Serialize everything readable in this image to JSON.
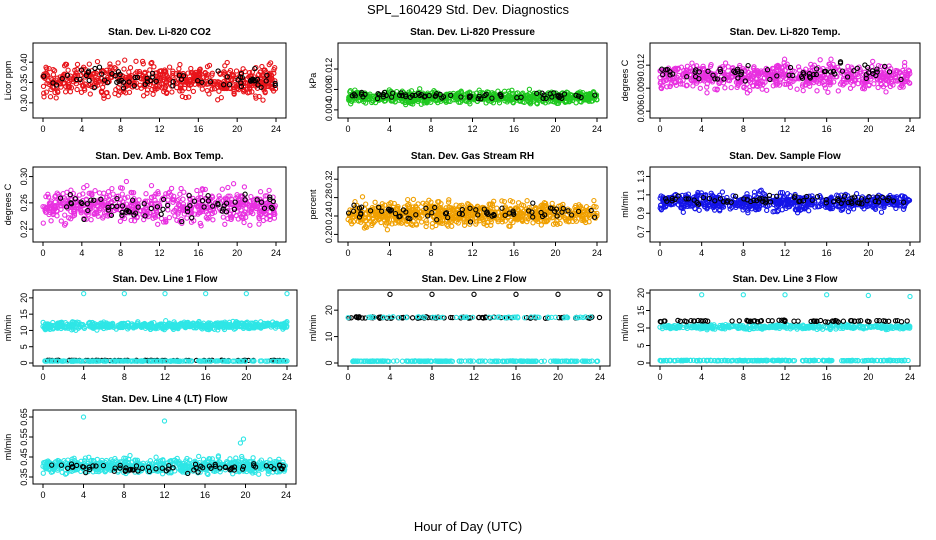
{
  "figure": {
    "title": "SPL_160429  Std. Dev. Diagnostics",
    "xlabel": "Hour of Day (UTC)"
  },
  "chart_data": [
    {
      "type": "scatter",
      "title": "Stan. Dev. Li-820 CO2",
      "ylabel": "Licor ppm",
      "xlim": [
        0,
        24
      ],
      "ylim": [
        0.27,
        0.44
      ],
      "xticks": [
        "0",
        "4",
        "8",
        "12",
        "16",
        "20",
        "24"
      ],
      "yticks": [
        {
          "v": 0.3,
          "t": "0.30"
        },
        {
          "v": 0.35,
          "t": "0.35"
        },
        {
          "v": 0.4,
          "t": "0.40"
        }
      ],
      "series": [
        {
          "color": "#e8141a",
          "mean": 0.355,
          "spread": 0.075,
          "min": 0.28,
          "max": 0.43,
          "n": 600
        },
        {
          "color": "#000000",
          "mean": 0.36,
          "spread": 0.05,
          "min": 0.3,
          "max": 0.43,
          "n": 70
        }
      ]
    },
    {
      "type": "scatter",
      "title": "Stan. Dev. Li-820 Pressure",
      "ylabel": "kPa",
      "xlim": [
        0,
        24
      ],
      "ylim": [
        0.003,
        0.0165
      ],
      "xticks": [
        "0",
        "4",
        "8",
        "12",
        "16",
        "20",
        "24"
      ],
      "yticks": [
        {
          "v": 0.004,
          "t": "0.004"
        },
        {
          "v": 0.008,
          "t": "0.008"
        },
        {
          "v": 0.012,
          "t": "0.012"
        }
      ],
      "series": [
        {
          "color": "#1ec81e",
          "mean": 0.0065,
          "spread": 0.0022,
          "min": 0.0035,
          "max": 0.015,
          "n": 700
        },
        {
          "color": "#000000",
          "mean": 0.0068,
          "spread": 0.0013,
          "min": 0.005,
          "max": 0.009,
          "n": 70
        }
      ]
    },
    {
      "type": "scatter",
      "title": "Stan. Dev. Li-820 Temp.",
      "ylabel": "degrees C",
      "xlim": [
        0,
        24
      ],
      "ylim": [
        0.0055,
        0.0145
      ],
      "xticks": [
        "0",
        "4",
        "8",
        "12",
        "16",
        "20",
        "24"
      ],
      "yticks": [
        {
          "v": 0.006,
          "t": "0.006"
        },
        {
          "v": 0.009,
          "t": "0.009"
        },
        {
          "v": 0.012,
          "t": "0.012"
        }
      ],
      "series": [
        {
          "color": "#e830e0",
          "mean": 0.0105,
          "spread": 0.0032,
          "min": 0.006,
          "max": 0.014,
          "n": 650
        },
        {
          "color": "#000000",
          "mean": 0.011,
          "spread": 0.002,
          "min": 0.0085,
          "max": 0.014,
          "n": 70
        }
      ]
    },
    {
      "type": "scatter",
      "title": "Stan. Dev. Amb. Box Temp.",
      "ylabel": "degrees C",
      "xlim": [
        0,
        24
      ],
      "ylim": [
        0.205,
        0.31
      ],
      "xticks": [
        "0",
        "4",
        "8",
        "12",
        "16",
        "20",
        "24"
      ],
      "yticks": [
        {
          "v": 0.22,
          "t": "0.22"
        },
        {
          "v": 0.26,
          "t": "0.26"
        },
        {
          "v": 0.3,
          "t": "0.30"
        }
      ],
      "series": [
        {
          "color": "#e830e0",
          "mean": 0.255,
          "spread": 0.05,
          "min": 0.21,
          "max": 0.305,
          "n": 600
        },
        {
          "color": "#000000",
          "mean": 0.255,
          "spread": 0.035,
          "min": 0.215,
          "max": 0.295,
          "n": 70
        }
      ]
    },
    {
      "type": "scatter",
      "title": "Stan. Dev. Gas Stream RH",
      "ylabel": "percent",
      "xlim": [
        0,
        24
      ],
      "ylim": [
        0.19,
        0.34
      ],
      "xticks": [
        "0",
        "4",
        "8",
        "12",
        "16",
        "20",
        "24"
      ],
      "yticks": [
        {
          "v": 0.2,
          "t": "0.20"
        },
        {
          "v": 0.24,
          "t": "0.24"
        },
        {
          "v": 0.28,
          "t": "0.28"
        },
        {
          "v": 0.32,
          "t": "0.32"
        }
      ],
      "series": [
        {
          "color": "#f0a000",
          "mean": 0.245,
          "spread": 0.05,
          "min": 0.195,
          "max": 0.33,
          "n": 750
        },
        {
          "color": "#000000",
          "mean": 0.245,
          "spread": 0.03,
          "min": 0.21,
          "max": 0.29,
          "n": 70
        }
      ]
    },
    {
      "type": "scatter",
      "title": "Stan. Dev. Sample Flow",
      "ylabel": "ml/min",
      "xlim": [
        0,
        24
      ],
      "ylim": [
        0.62,
        1.37
      ],
      "xticks": [
        "0",
        "4",
        "8",
        "12",
        "16",
        "20",
        "24"
      ],
      "yticks": [
        {
          "v": 0.7,
          "t": "0.7"
        },
        {
          "v": 0.9,
          "t": "0.9"
        },
        {
          "v": 1.1,
          "t": "1.1"
        },
        {
          "v": 1.3,
          "t": "1.3"
        }
      ],
      "series": [
        {
          "color": "#1414e8",
          "mean": 1.02,
          "spread": 0.18,
          "min": 0.65,
          "max": 1.35,
          "n": 650
        },
        {
          "color": "#000000",
          "mean": 1.05,
          "spread": 0.1,
          "min": 0.9,
          "max": 1.25,
          "n": 70
        }
      ]
    },
    {
      "type": "scatter",
      "title": "Stan. Dev. Line 1 Flow",
      "ylabel": "ml/min",
      "xlim": [
        0,
        24
      ],
      "ylim": [
        0,
        21.5
      ],
      "xticks": [
        "0",
        "4",
        "8",
        "12",
        "16",
        "20",
        "24"
      ],
      "yticks": [
        {
          "v": 0,
          "t": "0"
        },
        {
          "v": 5,
          "t": "5"
        },
        {
          "v": 10,
          "t": "10"
        },
        {
          "v": 15,
          "t": "15"
        },
        {
          "v": 20,
          "t": "20"
        }
      ],
      "series": [
        {
          "color": "#2ee6e6",
          "mean": 11.5,
          "spread": 2.2,
          "min": 9.5,
          "max": 13.5,
          "n": 600
        },
        {
          "color": "#000000",
          "mean": 0.8,
          "spread": 0.1,
          "min": 0.6,
          "max": 1.0,
          "n": 70
        },
        {
          "color": "#2ee6e6",
          "mean": 0.6,
          "spread": 0.1,
          "min": 0.4,
          "max": 0.8,
          "n": 200
        }
      ],
      "outliers": [
        {
          "x": 4,
          "y": 21.3
        },
        {
          "x": 8,
          "y": 21.3
        },
        {
          "x": 12,
          "y": 21.3
        },
        {
          "x": 16,
          "y": 21.3
        },
        {
          "x": 20,
          "y": 21.3
        },
        {
          "x": 24,
          "y": 21.3
        }
      ]
    },
    {
      "type": "scatter",
      "title": "Stan. Dev. Line 2 Flow",
      "ylabel": "ml/min",
      "xlim": [
        0,
        24
      ],
      "ylim": [
        0,
        26.5
      ],
      "xticks": [
        "0",
        "4",
        "8",
        "12",
        "16",
        "20",
        "24"
      ],
      "yticks": [
        {
          "v": 0,
          "t": "0"
        },
        {
          "v": 10,
          "t": "10"
        },
        {
          "v": 20,
          "t": "20"
        }
      ],
      "series": [
        {
          "color": "#000000",
          "mean": 17.2,
          "spread": 0.6,
          "min": 16.5,
          "max": 18,
          "n": 80
        },
        {
          "color": "#2ee6e6",
          "mean": 17.3,
          "spread": 0.4,
          "min": 16.8,
          "max": 17.8,
          "n": 60
        },
        {
          "color": "#2ee6e6",
          "mean": 0.7,
          "spread": 0.2,
          "min": 0.4,
          "max": 1.0,
          "n": 200
        }
      ],
      "outliers": [
        {
          "x": 4,
          "y": 26
        },
        {
          "x": 8,
          "y": 26
        },
        {
          "x": 12,
          "y": 26
        },
        {
          "x": 16,
          "y": 26
        },
        {
          "x": 20,
          "y": 26
        },
        {
          "x": 24,
          "y": 26
        }
      ]
    },
    {
      "type": "scatter",
      "title": "Stan. Dev. Line 3 Flow",
      "ylabel": "ml/min",
      "xlim": [
        0,
        24
      ],
      "ylim": [
        0,
        20
      ],
      "xticks": [
        "0",
        "4",
        "8",
        "12",
        "16",
        "20",
        "24"
      ],
      "yticks": [
        {
          "v": 0,
          "t": "0"
        },
        {
          "v": 5,
          "t": "5"
        },
        {
          "v": 10,
          "t": "10"
        },
        {
          "v": 15,
          "t": "15"
        },
        {
          "v": 20,
          "t": "20"
        }
      ],
      "series": [
        {
          "color": "#2ee6e6",
          "mean": 10.3,
          "spread": 1.2,
          "min": 9.5,
          "max": 11.2,
          "n": 400
        },
        {
          "color": "#000000",
          "mean": 12.0,
          "spread": 0.5,
          "min": 11.5,
          "max": 12.5,
          "n": 70
        },
        {
          "color": "#2ee6e6",
          "mean": 0.7,
          "spread": 0.2,
          "min": 0.4,
          "max": 1.0,
          "n": 200
        }
      ],
      "outliers": [
        {
          "x": 4,
          "y": 19.5
        },
        {
          "x": 8,
          "y": 19.5
        },
        {
          "x": 12,
          "y": 19.5
        },
        {
          "x": 16,
          "y": 19.5
        },
        {
          "x": 20,
          "y": 19.3
        },
        {
          "x": 24,
          "y": 19.0
        }
      ]
    },
    {
      "type": "scatter",
      "title": "Stan. Dev. Line 4 (LT) Flow",
      "ylabel": "ml/min",
      "xlim": [
        0,
        24
      ],
      "ylim": [
        0.33,
        0.67
      ],
      "xticks": [
        "0",
        "4",
        "8",
        "12",
        "16",
        "20",
        "24"
      ],
      "yticks": [
        {
          "v": 0.35,
          "t": "0.35"
        },
        {
          "v": 0.45,
          "t": "0.45"
        },
        {
          "v": 0.55,
          "t": "0.55"
        },
        {
          "v": 0.65,
          "t": "0.65"
        }
      ],
      "series": [
        {
          "color": "#2ee6e6",
          "mean": 0.405,
          "spread": 0.07,
          "min": 0.355,
          "max": 0.46,
          "n": 700
        },
        {
          "color": "#000000",
          "mean": 0.395,
          "spread": 0.04,
          "min": 0.36,
          "max": 0.44,
          "n": 70
        }
      ],
      "outliers": [
        {
          "x": 4,
          "y": 0.65
        },
        {
          "x": 12,
          "y": 0.63
        },
        {
          "x": 19.8,
          "y": 0.54
        },
        {
          "x": 19.5,
          "y": 0.52
        }
      ]
    }
  ]
}
